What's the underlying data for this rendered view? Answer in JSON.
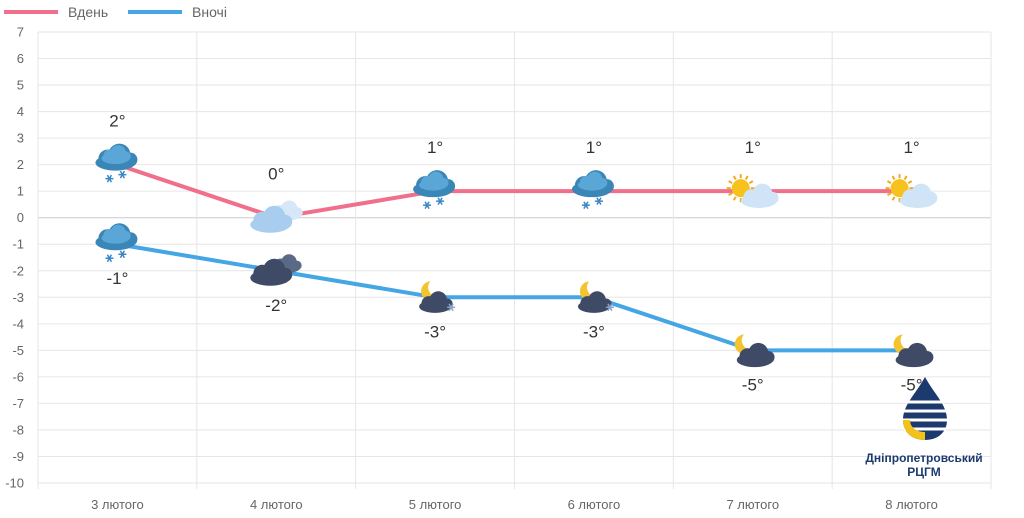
{
  "chart_data": {
    "type": "line",
    "categories": [
      "3 лютого",
      "4 лютого",
      "5 лютого",
      "6 лютого",
      "7 лютого",
      "8 лютого"
    ],
    "series": [
      {
        "name": "Вдень",
        "color": "#f0708c",
        "values": [
          2,
          0,
          1,
          1,
          1,
          1
        ],
        "labels": [
          "2°",
          "0°",
          "1°",
          "1°",
          "1°",
          "1°"
        ],
        "icons": [
          "cloud-snow-icon",
          "cloudy-day-icon",
          "cloud-snow-icon",
          "cloud-snow-icon",
          "sun-cloud-icon",
          "sun-cloud-icon"
        ]
      },
      {
        "name": "Вночі",
        "color": "#45a6e6",
        "values": [
          -1,
          -2,
          -3,
          -3,
          -5,
          -5
        ],
        "labels": [
          "-1°",
          "-2°",
          "-3°",
          "-3°",
          "-5°",
          "-5°"
        ],
        "icons": [
          "cloud-snow-icon",
          "dark-cloud-icon",
          "moon-cloud-snow-icon",
          "moon-cloud-snow-icon",
          "moon-cloud-icon",
          "moon-cloud-icon"
        ]
      }
    ],
    "ylim": [
      -10,
      7
    ],
    "yticks": [
      "7",
      "6",
      "5",
      "4",
      "3",
      "2",
      "1",
      "0",
      "-1",
      "-2",
      "-3",
      "-4",
      "-5",
      "-6",
      "-7",
      "-8",
      "-9",
      "-10"
    ],
    "grid": true,
    "legend": "top-left"
  },
  "logo": {
    "line1": "Дніпропетровський",
    "line2": "РЦГМ"
  }
}
